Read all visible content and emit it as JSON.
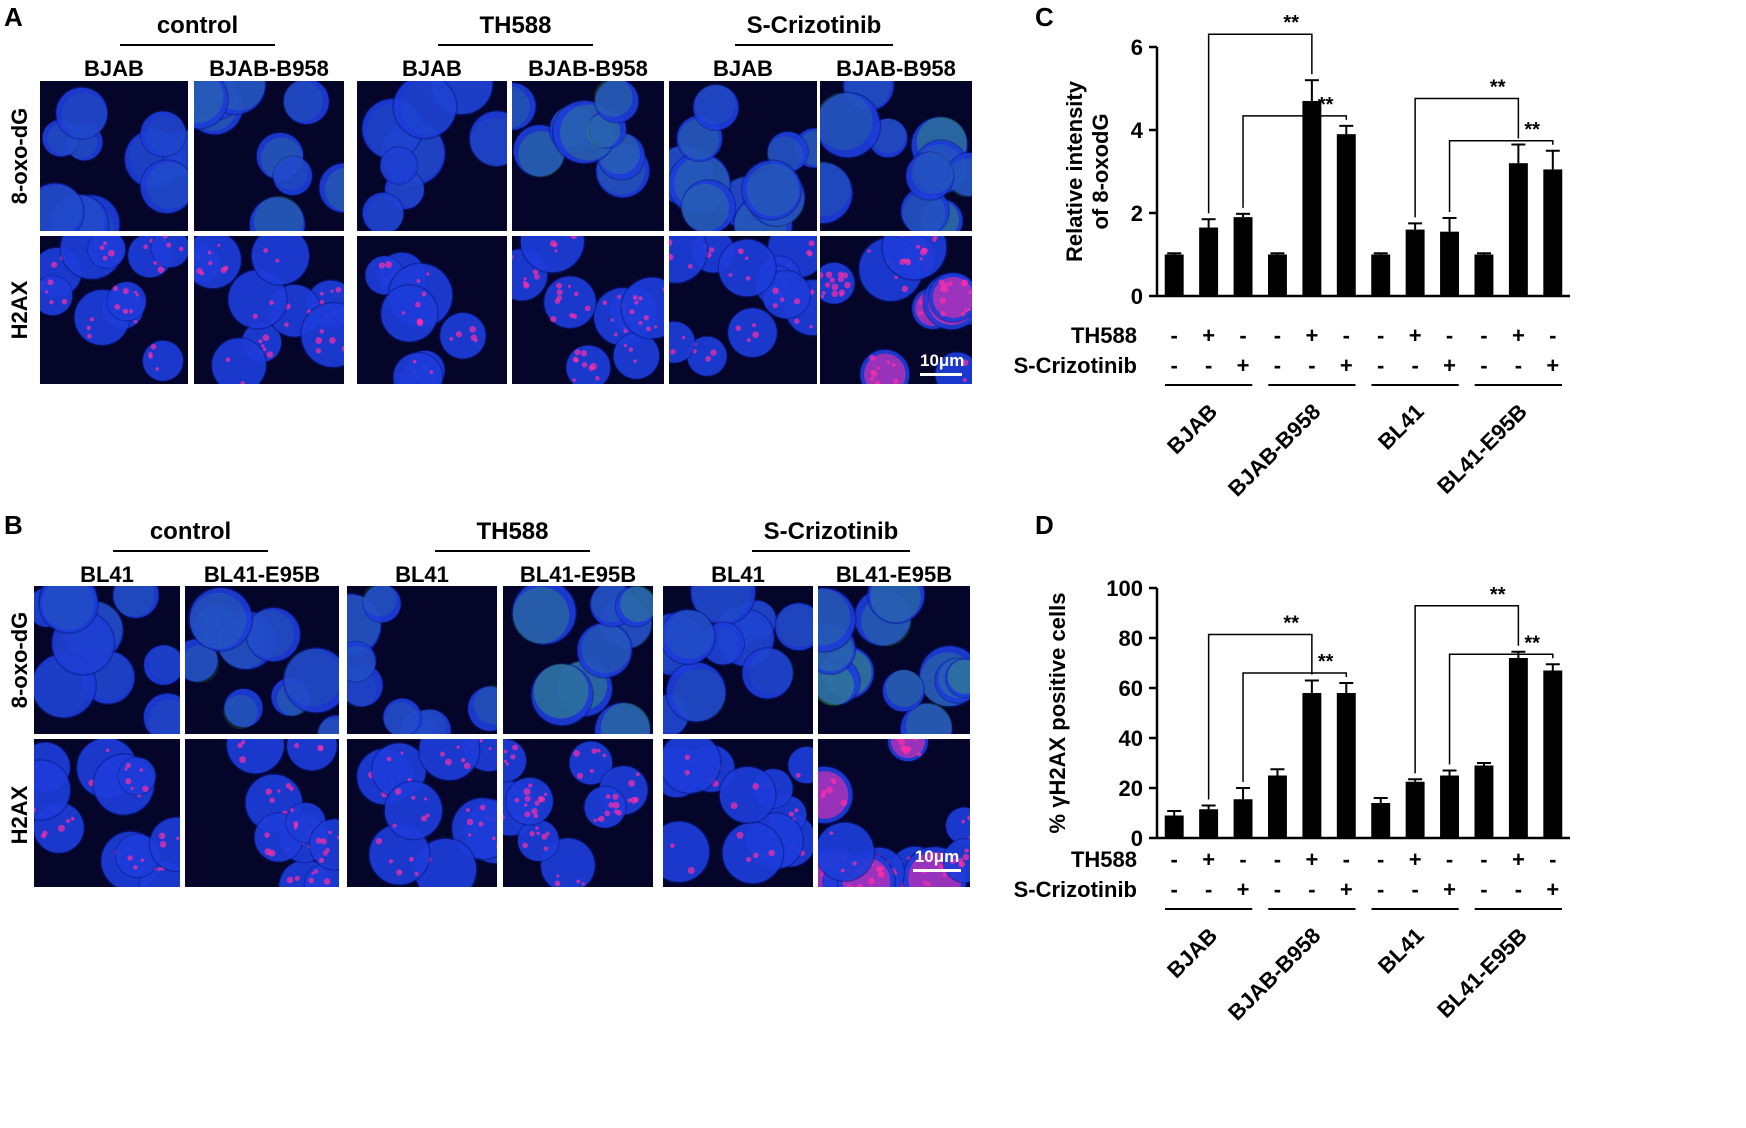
{
  "figure": {
    "panel_labels": {
      "A": "A",
      "B": "B",
      "C": "C",
      "D": "D"
    },
    "scale_bar_label": "10μm",
    "colors": {
      "dapi": "#1f3fe0",
      "oxo": "#4ccf3a",
      "h2ax": "#ff2ea8",
      "background": "#05052a",
      "bars": "#000000"
    }
  },
  "panelA": {
    "treatments": [
      "control",
      "TH588",
      "S-Crizotinib"
    ],
    "cells": [
      "BJAB",
      "BJAB-B958",
      "BJAB",
      "BJAB-B958",
      "BJAB",
      "BJAB-B958"
    ],
    "rows": [
      "8-oxo-dG",
      "H2AX"
    ]
  },
  "panelB": {
    "treatments": [
      "control",
      "TH588",
      "S-Crizotinib"
    ],
    "cells": [
      "BL41",
      "BL41-E95B",
      "BL41",
      "BL41-E95B",
      "BL41",
      "BL41-E95B"
    ],
    "rows": [
      "8-oxo-dG",
      "H2AX"
    ]
  },
  "chart_data": [
    {
      "type": "bar",
      "panel": "C",
      "ylabel": "Relative intensity of 8-oxodG",
      "ylim": [
        0,
        6
      ],
      "yticks": [
        0,
        2,
        4,
        6
      ],
      "values": [
        1.0,
        1.65,
        1.9,
        1.0,
        4.7,
        3.9,
        1.0,
        1.6,
        1.55,
        1.0,
        3.2,
        3.05
      ],
      "errors": [
        0.03,
        0.2,
        0.08,
        0.03,
        0.5,
        0.2,
        0.03,
        0.15,
        0.33,
        0.03,
        0.45,
        0.45
      ],
      "row_labels": [
        "TH588",
        "S-Crizotinib"
      ],
      "th588": [
        "-",
        "+",
        "-",
        "-",
        "+",
        "-",
        "-",
        "+",
        "-",
        "-",
        "+",
        "-"
      ],
      "crizotinib": [
        "-",
        "-",
        "+",
        "-",
        "-",
        "+",
        "-",
        "-",
        "+",
        "-",
        "-",
        "+"
      ],
      "groups": [
        "BJAB",
        "BJAB-B958",
        "BL41",
        "BL41-E95B"
      ],
      "significance": [
        {
          "from": 1,
          "to": 4,
          "label": "**"
        },
        {
          "from": 2,
          "to": 5,
          "label": "**"
        },
        {
          "from": 7,
          "to": 10,
          "label": "**"
        },
        {
          "from": 8,
          "to": 11,
          "label": "**"
        }
      ]
    },
    {
      "type": "bar",
      "panel": "D",
      "ylabel": "% γH2AX positive cells",
      "ylim": [
        0,
        100
      ],
      "yticks": [
        0,
        20,
        40,
        60,
        80,
        100
      ],
      "values": [
        9,
        11.5,
        15.5,
        25,
        58,
        58,
        14,
        22.5,
        25,
        29,
        72,
        67
      ],
      "errors": [
        1.8,
        1.5,
        4.5,
        2.5,
        5,
        4,
        2,
        1,
        2,
        1,
        2.5,
        2.5
      ],
      "row_labels": [
        "TH588",
        "S-Crizotinib"
      ],
      "th588": [
        "-",
        "+",
        "-",
        "-",
        "+",
        "-",
        "-",
        "+",
        "-",
        "-",
        "+",
        "-"
      ],
      "crizotinib": [
        "-",
        "-",
        "+",
        "-",
        "-",
        "+",
        "-",
        "-",
        "+",
        "-",
        "-",
        "+"
      ],
      "groups": [
        "BJAB",
        "BJAB-B958",
        "BL41",
        "BL41-E95B"
      ],
      "significance": [
        {
          "from": 1,
          "to": 4,
          "label": "**"
        },
        {
          "from": 2,
          "to": 5,
          "label": "**"
        },
        {
          "from": 7,
          "to": 10,
          "label": "**"
        },
        {
          "from": 8,
          "to": 11,
          "label": "**"
        }
      ]
    }
  ]
}
